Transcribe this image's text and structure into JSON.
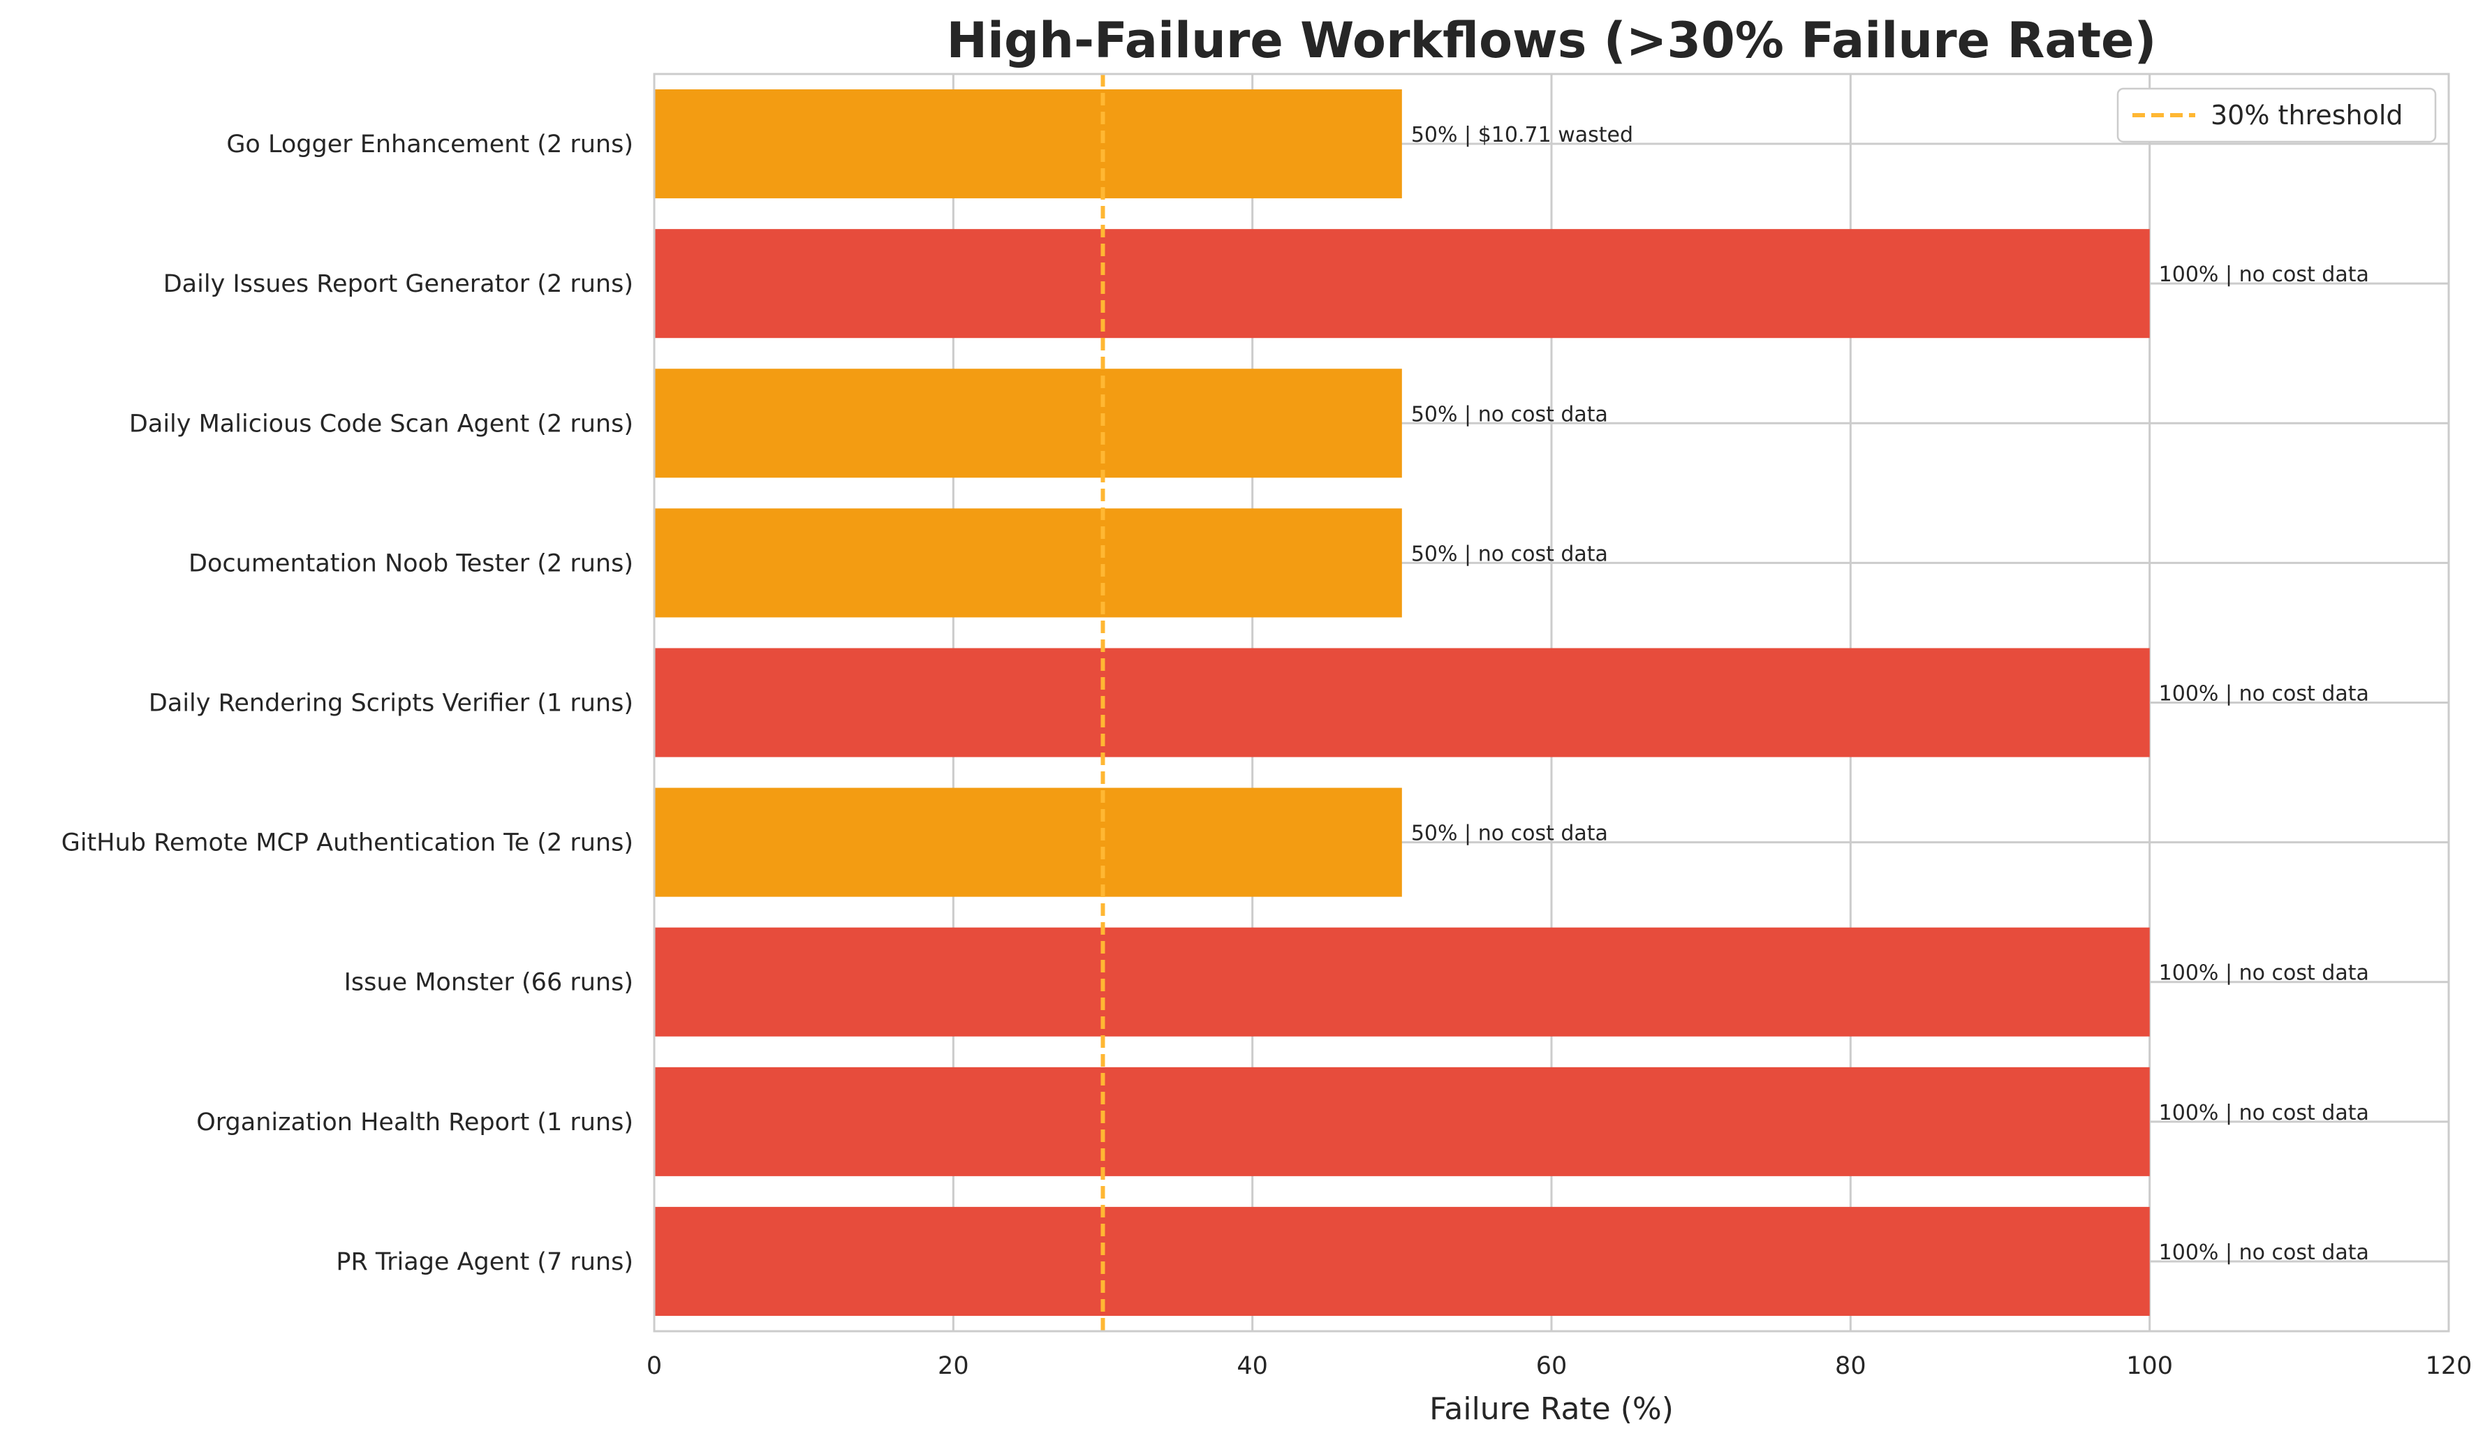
{
  "chart_data": {
    "type": "bar",
    "orientation": "horizontal",
    "title": "High-Failure Workflows (>30% Failure Rate)",
    "xlabel": "Failure Rate (%)",
    "ylabel": "",
    "xlim": [
      0,
      120
    ],
    "xticks": [
      0,
      20,
      40,
      60,
      80,
      100,
      120
    ],
    "grid": true,
    "categories": [
      "Go Logger Enhancement (2 runs)",
      "Daily Issues Report Generator (2 runs)",
      "Daily Malicious Code Scan Agent (2 runs)",
      "Documentation Noob Tester (2 runs)",
      "Daily Rendering Scripts Verifier (1 runs)",
      "GitHub Remote MCP Authentication Te (2 runs)",
      "Issue Monster (66 runs)",
      "Organization Health Report (1 runs)",
      "PR Triage Agent (7 runs)"
    ],
    "values": [
      50,
      100,
      50,
      50,
      100,
      50,
      100,
      100,
      100
    ],
    "bar_labels": [
      "50% | $10.71 wasted",
      "100% | no cost data",
      "50% | no cost data",
      "50% | no cost data",
      "100% | no cost data",
      "50% | no cost data",
      "100% | no cost data",
      "100% | no cost data",
      "100% | no cost data"
    ],
    "bar_colors": [
      "#f39c12",
      "#e74c3c",
      "#f39c12",
      "#f39c12",
      "#e74c3c",
      "#f39c12",
      "#e74c3c",
      "#e74c3c",
      "#e74c3c"
    ],
    "threshold": {
      "value": 30,
      "label": "30% threshold",
      "color": "#ffb733",
      "style": "dashed"
    },
    "legend": {
      "position": "top-right",
      "entries": [
        "30% threshold"
      ]
    }
  }
}
